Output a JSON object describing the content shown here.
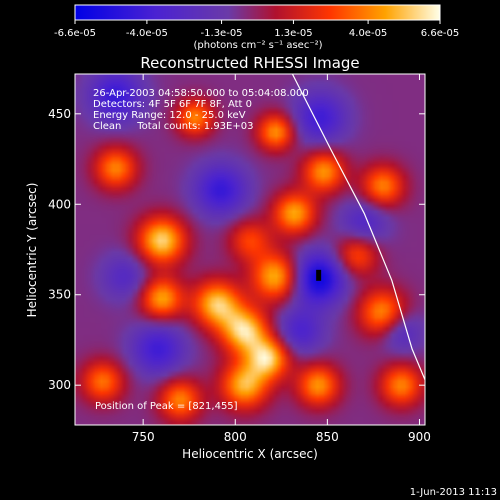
{
  "chart_data": {
    "type": "heatmap",
    "title": "Reconstructed RHESSI Image",
    "xlabel": "Heliocentric X (arcsec)",
    "ylabel": "Heliocentric Y (arcsec)",
    "xlim": [
      713,
      903
    ],
    "ylim": [
      278,
      472
    ],
    "xticks": [
      750,
      800,
      850,
      900
    ],
    "yticks": [
      300,
      350,
      400,
      450
    ],
    "colorbar": {
      "ticks": [
        "-6.6e-05",
        "-4.0e-05",
        "-1.3e-05",
        "1.3e-05",
        "4.0e-05",
        "6.6e-05"
      ],
      "tick_values": [
        -6.6e-05,
        -4e-05,
        -1.3e-05,
        1.3e-05,
        4e-05,
        6.6e-05
      ],
      "range": [
        -6.6e-05,
        6.6e-05
      ],
      "units_label": "(photons cm⁻² s⁻¹ asec⁻²)"
    },
    "annotations": [
      "26-Apr-2003 04:58:50.000 to 05:04:08.000",
      "Detectors: 4F 5F 6F 7F 8F, Att 0",
      "Energy Range: 12.0 - 25.0 keV",
      "Clean     Total counts: 1.93E+03"
    ],
    "peak_label": "Position of Peak = [821,455]",
    "peak": [
      821,
      455
    ],
    "limb_curve": [
      [
        831,
        472
      ],
      [
        852,
        430
      ],
      [
        870,
        395
      ],
      [
        885,
        358
      ],
      [
        896,
        320
      ],
      [
        903,
        303
      ]
    ],
    "hotspots": [
      {
        "x": 760,
        "y": 380,
        "v": 0.95,
        "s": 9
      },
      {
        "x": 790,
        "y": 345,
        "v": 0.9,
        "s": 9
      },
      {
        "x": 805,
        "y": 330,
        "v": 0.95,
        "s": 9
      },
      {
        "x": 818,
        "y": 315,
        "v": 0.9,
        "s": 8
      },
      {
        "x": 822,
        "y": 360,
        "v": 0.85,
        "s": 9
      },
      {
        "x": 832,
        "y": 395,
        "v": 0.8,
        "s": 8
      },
      {
        "x": 805,
        "y": 300,
        "v": 0.85,
        "s": 9
      },
      {
        "x": 880,
        "y": 340,
        "v": 0.75,
        "s": 9
      },
      {
        "x": 760,
        "y": 348,
        "v": 0.8,
        "s": 8
      },
      {
        "x": 848,
        "y": 418,
        "v": 0.75,
        "s": 8
      },
      {
        "x": 735,
        "y": 420,
        "v": 0.7,
        "s": 8
      },
      {
        "x": 845,
        "y": 300,
        "v": 0.75,
        "s": 8
      },
      {
        "x": 880,
        "y": 410,
        "v": 0.7,
        "s": 8
      },
      {
        "x": 770,
        "y": 292,
        "v": 0.7,
        "s": 8
      },
      {
        "x": 890,
        "y": 300,
        "v": 0.7,
        "s": 8
      },
      {
        "x": 778,
        "y": 448,
        "v": 0.7,
        "s": 7
      },
      {
        "x": 822,
        "y": 440,
        "v": 0.75,
        "s": 7
      },
      {
        "x": 728,
        "y": 302,
        "v": 0.65,
        "s": 8
      },
      {
        "x": 866,
        "y": 372,
        "v": 0.55,
        "s": 8
      },
      {
        "x": 808,
        "y": 380,
        "v": 0.5,
        "s": 8
      },
      {
        "x": 845,
        "y": 359,
        "v": -0.85,
        "s": 10
      },
      {
        "x": 792,
        "y": 408,
        "v": -0.6,
        "s": 10
      },
      {
        "x": 758,
        "y": 320,
        "v": -0.55,
        "s": 10
      },
      {
        "x": 846,
        "y": 448,
        "v": -0.55,
        "s": 10
      },
      {
        "x": 735,
        "y": 460,
        "v": -0.6,
        "s": 10
      },
      {
        "x": 870,
        "y": 390,
        "v": -0.4,
        "s": 9
      },
      {
        "x": 835,
        "y": 330,
        "v": -0.45,
        "s": 9
      },
      {
        "x": 740,
        "y": 360,
        "v": -0.35,
        "s": 9
      },
      {
        "x": 890,
        "y": 330,
        "v": -0.4,
        "s": 8
      }
    ]
  },
  "footer": {
    "timestamp": "1-Jun-2013 11:13"
  }
}
